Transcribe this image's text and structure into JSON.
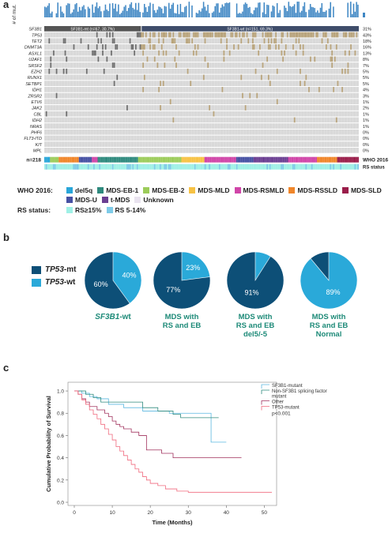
{
  "panel_a": {
    "letter": "a",
    "y_axis_label": "# of mut.",
    "sf3b1_mt_label": "SF3B1-mt (n=67, 30.7%)",
    "sf3b1_wt_label": "SF3B1-wt (n=151, 69.3%)",
    "n_label": "n=218",
    "who_label": "WHO 2016",
    "rs_label": "RS status",
    "genes": [
      {
        "name": "SF3B1",
        "pct": "31%"
      },
      {
        "name": "TP53",
        "pct": "43%"
      },
      {
        "name": "TET2",
        "pct": "18%"
      },
      {
        "name": "DNMT3A",
        "pct": "16%"
      },
      {
        "name": "ASXL1",
        "pct": "13%"
      },
      {
        "name": "U2AF1",
        "pct": "8%"
      },
      {
        "name": "SRSF2",
        "pct": "7%"
      },
      {
        "name": "EZH2",
        "pct": "5%"
      },
      {
        "name": "RUNX1",
        "pct": "5%"
      },
      {
        "name": "SETBP1",
        "pct": "5%"
      },
      {
        "name": "IDH1",
        "pct": "4%"
      },
      {
        "name": "ZRSR2",
        "pct": "3%"
      },
      {
        "name": "ETV6",
        "pct": "1%"
      },
      {
        "name": "JAK2",
        "pct": "2%"
      },
      {
        "name": "CBL",
        "pct": "1%"
      },
      {
        "name": "IDH2",
        "pct": "1%"
      },
      {
        "name": "NRAS",
        "pct": "1%"
      },
      {
        "name": "PHF6",
        "pct": "0%"
      },
      {
        "name": "FLT3-ITD",
        "pct": "0%"
      },
      {
        "name": "KIT",
        "pct": "0%"
      },
      {
        "name": "MPL",
        "pct": "0%"
      }
    ],
    "who_legend_title": "WHO 2016:",
    "who_legend": [
      {
        "label": "del5q",
        "color": "#29a6d9"
      },
      {
        "label": "MDS-EB-1",
        "color": "#2f8a7e"
      },
      {
        "label": "MDS-EB-2",
        "color": "#9ccc5a"
      },
      {
        "label": "MDS-MLD",
        "color": "#f7c244"
      },
      {
        "label": "MDS-RSMLD",
        "color": "#d045a8"
      },
      {
        "label": "MDS-RSSLD",
        "color": "#f0862a"
      },
      {
        "label": "MDS-SLD",
        "color": "#9a1d4a"
      },
      {
        "label": "MDS-U",
        "color": "#4651a3"
      },
      {
        "label": "t-MDS",
        "color": "#6b3f92"
      },
      {
        "label": "Unknown",
        "color": "#e9e3ef"
      }
    ],
    "rs_legend_title": "RS status:",
    "rs_legend": [
      {
        "label": "RS≥15%",
        "color": "#9ff0e6"
      },
      {
        "label": "RS 5-14%",
        "color": "#7ecbe8"
      }
    ]
  },
  "panel_b": {
    "letter": "b",
    "legend": [
      {
        "label": "TP53-mt",
        "gene": "TP53",
        "suffix": "-mt",
        "color": "#0d4f77"
      },
      {
        "label": "TP53-wt",
        "gene": "TP53",
        "suffix": "-wt",
        "color": "#2aa9d9"
      }
    ],
    "pies": [
      {
        "mt_pct": 60,
        "wt_pct": 40,
        "mt_label": "60%",
        "wt_label": "40%",
        "caption_gene": "SF3B1",
        "caption_rest": "-wt",
        "caption_lines": []
      },
      {
        "mt_pct": 77,
        "wt_pct": 23,
        "mt_label": "77%",
        "wt_label": "23%",
        "caption_gene": "",
        "caption_rest": "",
        "caption_lines": [
          "MDS with",
          "RS and EB"
        ]
      },
      {
        "mt_pct": 91,
        "wt_pct": 9,
        "mt_label": "91%",
        "wt_label": "",
        "caption_gene": "",
        "caption_rest": "",
        "caption_lines": [
          "MDS with",
          "RS and EB",
          "del5/-5"
        ]
      },
      {
        "mt_pct": 11,
        "wt_pct": 89,
        "mt_label": "",
        "wt_label": "89%",
        "caption_gene": "",
        "caption_rest": "",
        "caption_lines": [
          "MDS with",
          "RS and EB",
          "Normal"
        ]
      }
    ]
  },
  "panel_c": {
    "letter": "c",
    "chart_data": {
      "type": "line",
      "title": "",
      "xlabel": "Time (Months)",
      "ylabel": "Cumulative Probability of Survival",
      "xlim": [
        0,
        52
      ],
      "ylim": [
        0,
        1.05
      ],
      "x_ticks": [
        0,
        10,
        20,
        30,
        40,
        50
      ],
      "y_ticks": [
        0.0,
        0.2,
        0.4,
        0.6,
        0.8,
        1.0
      ],
      "y_tick_labels": [
        "0.0",
        "0.2",
        "0.4",
        "0.6",
        "0.8",
        "1.0"
      ],
      "legend_placement": "top-right",
      "p_value": "p<0.001",
      "series": [
        {
          "name": "SF3B1-mutant",
          "color": "#5bb8e0",
          "steps": [
            [
              0,
              1.0
            ],
            [
              2,
              0.98
            ],
            [
              4,
              0.95
            ],
            [
              6,
              0.93
            ],
            [
              9,
              0.88
            ],
            [
              13,
              0.85
            ],
            [
              18,
              0.82
            ],
            [
              25,
              0.8
            ],
            [
              35,
              0.8
            ],
            [
              36,
              0.54
            ],
            [
              40,
              0.54
            ]
          ]
        },
        {
          "name": "Non-SF3B1 splicing factor mutant",
          "color": "#2f8a7e",
          "steps": [
            [
              0,
              1.0
            ],
            [
              3,
              0.97
            ],
            [
              5,
              0.94
            ],
            [
              7,
              0.9
            ],
            [
              12,
              0.9
            ],
            [
              18,
              0.85
            ],
            [
              22,
              0.82
            ],
            [
              26,
              0.79
            ],
            [
              28,
              0.76
            ],
            [
              38,
              0.76
            ]
          ]
        },
        {
          "name": "Other",
          "color": "#a0305c",
          "steps": [
            [
              0,
              1.0
            ],
            [
              1,
              0.97
            ],
            [
              2,
              0.93
            ],
            [
              3,
              0.9
            ],
            [
              4,
              0.86
            ],
            [
              6,
              0.83
            ],
            [
              8,
              0.8
            ],
            [
              9,
              0.77
            ],
            [
              10,
              0.73
            ],
            [
              11,
              0.7
            ],
            [
              12,
              0.68
            ],
            [
              13,
              0.66
            ],
            [
              15,
              0.63
            ],
            [
              17,
              0.6
            ],
            [
              19,
              0.47
            ],
            [
              21,
              0.47
            ],
            [
              23,
              0.44
            ],
            [
              26,
              0.4
            ],
            [
              30,
              0.4
            ],
            [
              35,
              0.4
            ],
            [
              44,
              0.4
            ]
          ]
        },
        {
          "name": "TP53-mutant",
          "color": "#f06a7e",
          "steps": [
            [
              0,
              1.0
            ],
            [
              1,
              0.97
            ],
            [
              2,
              0.92
            ],
            [
              3,
              0.88
            ],
            [
              4,
              0.83
            ],
            [
              5,
              0.79
            ],
            [
              6,
              0.75
            ],
            [
              7,
              0.7
            ],
            [
              8,
              0.66
            ],
            [
              9,
              0.61
            ],
            [
              10,
              0.56
            ],
            [
              11,
              0.5
            ],
            [
              12,
              0.46
            ],
            [
              13,
              0.42
            ],
            [
              14,
              0.38
            ],
            [
              15,
              0.34
            ],
            [
              16,
              0.3
            ],
            [
              17,
              0.27
            ],
            [
              18,
              0.23
            ],
            [
              19,
              0.2
            ],
            [
              20,
              0.17
            ],
            [
              22,
              0.15
            ],
            [
              24,
              0.12
            ],
            [
              27,
              0.1
            ],
            [
              30,
              0.09
            ],
            [
              40,
              0.09
            ],
            [
              52,
              0.09
            ]
          ]
        }
      ]
    }
  }
}
